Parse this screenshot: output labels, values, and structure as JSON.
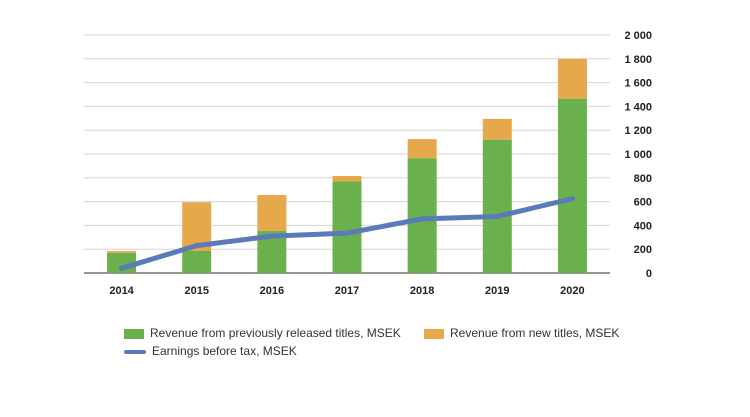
{
  "chart_data": {
    "type": "bar",
    "stacked": true,
    "categories": [
      "2014",
      "2015",
      "2016",
      "2017",
      "2018",
      "2019",
      "2020"
    ],
    "series": [
      {
        "name": "Revenue from previously released titles, MSEK",
        "kind": "bar",
        "color": "#6ab04c",
        "values": [
          170,
          185,
          355,
          770,
          965,
          1120,
          1465
        ]
      },
      {
        "name": "Revenue from new titles, MSEK",
        "kind": "bar",
        "color": "#e5a84a",
        "values": [
          15,
          410,
          300,
          45,
          160,
          175,
          335
        ]
      },
      {
        "name": "Earnings before tax, MSEK",
        "kind": "line",
        "color": "#5b7ab8",
        "values": [
          40,
          230,
          310,
          335,
          455,
          475,
          625
        ]
      }
    ],
    "yticks": [
      "0",
      "200",
      "400",
      "600",
      "800",
      "1 000",
      "1 200",
      "1 400",
      "1 600",
      "1 800",
      "2 000"
    ],
    "ylim": [
      0,
      2000
    ],
    "y_axis_side": "right",
    "grid": true,
    "legend_position": "bottom"
  }
}
